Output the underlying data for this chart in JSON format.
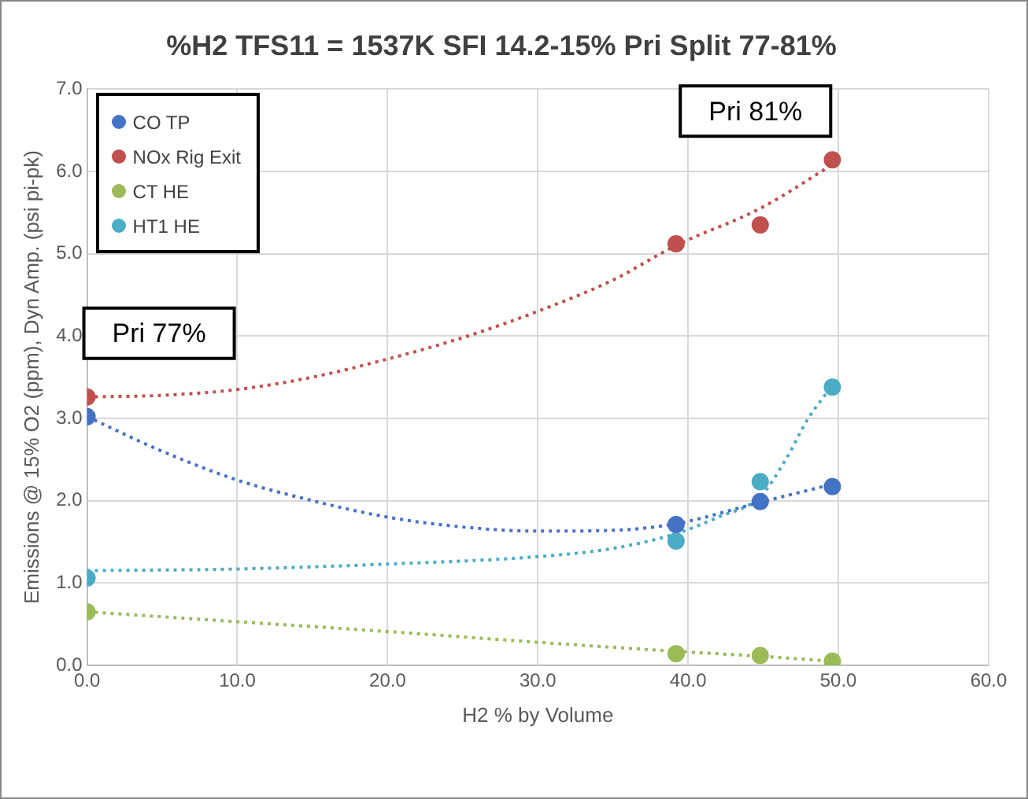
{
  "chart_data": {
    "type": "scatter",
    "title": "%H2 TFS11 = 1537K SFI 14.2-15% Pri Split 77-81%",
    "xlabel": "H2 % by Volume",
    "ylabel": "Emissions @ 15% O2 (ppm), Dyn Amp. (psi pi-pk)",
    "xlim": [
      0,
      60
    ],
    "ylim": [
      0,
      7
    ],
    "xticks": [
      {
        "value": 0,
        "label": "0.0"
      },
      {
        "value": 10,
        "label": "10.0"
      },
      {
        "value": 20,
        "label": "20.0"
      },
      {
        "value": 30,
        "label": "30.0"
      },
      {
        "value": 40,
        "label": "40.0"
      },
      {
        "value": 50,
        "label": "50.0"
      },
      {
        "value": 60,
        "label": "60.0"
      }
    ],
    "yticks": [
      {
        "value": 0,
        "label": "0.0"
      },
      {
        "value": 1,
        "label": "1.0"
      },
      {
        "value": 2,
        "label": "2.0"
      },
      {
        "value": 3,
        "label": "3.0"
      },
      {
        "value": 4,
        "label": "4.0"
      },
      {
        "value": 5,
        "label": "5.0"
      },
      {
        "value": 6,
        "label": "6.0"
      },
      {
        "value": 7,
        "label": "7.0"
      }
    ],
    "grid": true,
    "legend": "top left",
    "marker": "circle",
    "annotations": [
      "Pri 77%",
      "Pri 81%"
    ],
    "series": [
      {
        "name": "CO TP",
        "color": "#4472c4",
        "x": [
          0,
          39.2,
          44.8,
          49.6
        ],
        "values": [
          3.02,
          1.71,
          1.99,
          2.17
        ]
      },
      {
        "name": "NOx Rig Exit",
        "color": "#c0504d",
        "x": [
          0,
          39.2,
          44.8,
          49.6
        ],
        "values": [
          3.26,
          5.12,
          5.35,
          6.14
        ]
      },
      {
        "name": "CT HE",
        "color": "#9bbb59",
        "x": [
          0,
          39.2,
          44.8,
          49.6
        ],
        "values": [
          0.65,
          0.14,
          0.12,
          0.05
        ]
      },
      {
        "name": "HT1 HE",
        "color": "#4bacc6",
        "x": [
          0,
          39.2,
          44.8,
          49.6
        ],
        "values": [
          1.06,
          1.51,
          2.23,
          3.38
        ]
      },
      {
        "type": "line",
        "marker": "none",
        "line_style": "dotted",
        "color": "#4472c4",
        "x": [
          0,
          5,
          10,
          15,
          20,
          25,
          30,
          35,
          39.2,
          44.8,
          49.6
        ],
        "values": [
          3.02,
          2.6,
          2.25,
          2.0,
          1.8,
          1.68,
          1.63,
          1.64,
          1.72,
          1.98,
          2.2
        ]
      },
      {
        "type": "line",
        "marker": "none",
        "line_style": "dotted",
        "color": "#c0504d",
        "x": [
          0,
          5,
          10,
          15,
          20,
          25,
          30,
          35,
          39.2,
          44.8,
          49.6
        ],
        "values": [
          3.26,
          3.28,
          3.35,
          3.5,
          3.72,
          3.98,
          4.3,
          4.68,
          5.1,
          5.55,
          6.08
        ]
      },
      {
        "type": "line",
        "marker": "none",
        "line_style": "dotted",
        "color": "#9bbb59",
        "x": [
          0,
          10,
          20,
          30,
          39.2,
          44.8,
          49.6
        ],
        "values": [
          0.65,
          0.53,
          0.41,
          0.28,
          0.17,
          0.11,
          0.05
        ]
      },
      {
        "type": "line",
        "marker": "none",
        "line_style": "dotted",
        "color": "#4bacc6",
        "x": [
          0,
          10,
          20,
          30,
          35,
          39.2,
          42,
          44.8,
          46.5,
          48,
          49.6
        ],
        "values": [
          1.15,
          1.17,
          1.23,
          1.32,
          1.42,
          1.6,
          1.8,
          2.05,
          2.5,
          3.0,
          3.4
        ]
      }
    ]
  }
}
